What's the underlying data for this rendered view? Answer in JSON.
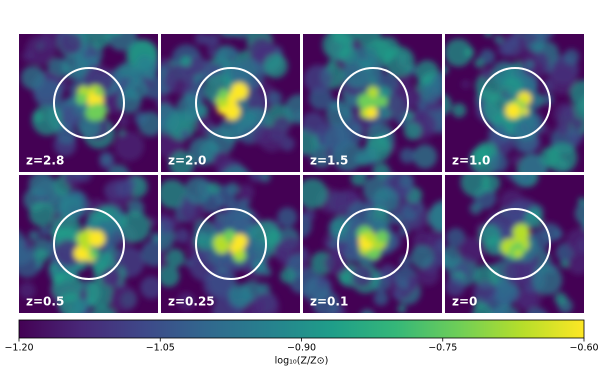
{
  "chart_data": {
    "type": "image-grid",
    "panels": [
      {
        "label": "z=2.8"
      },
      {
        "label": "z=2.0"
      },
      {
        "label": "z=1.5"
      },
      {
        "label": "z=1.0"
      },
      {
        "label": "z=0.5"
      },
      {
        "label": "z=0.25"
      },
      {
        "label": "z=0.1"
      },
      {
        "label": "z=0"
      }
    ],
    "colormap": "viridis",
    "colorbar": {
      "label": "log₁₀(Z/Z⊙)",
      "lim": [
        -1.2,
        -0.6
      ],
      "ticks": [
        {
          "value": -1.2,
          "label": "−1.20"
        },
        {
          "value": -1.05,
          "label": "−1.05"
        },
        {
          "value": -0.9,
          "label": "−0.90"
        },
        {
          "value": -0.75,
          "label": "−0.75"
        },
        {
          "value": -0.6,
          "label": "−0.60"
        }
      ]
    }
  }
}
